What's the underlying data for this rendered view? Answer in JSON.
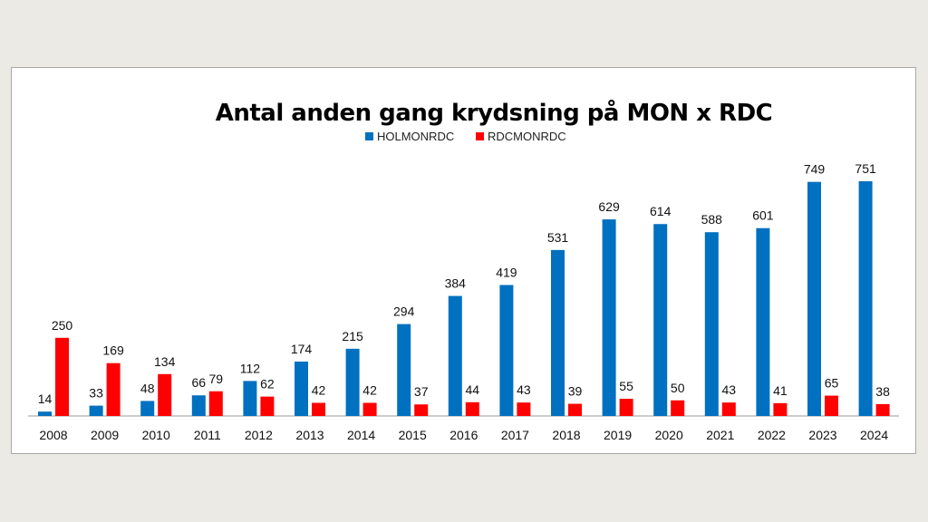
{
  "chart_data": {
    "type": "bar",
    "title": "Antal anden gang krydsning på MON x RDC",
    "xlabel": "",
    "ylabel": "",
    "categories": [
      "2008",
      "2009",
      "2010",
      "2011",
      "2012",
      "2013",
      "2014",
      "2015",
      "2016",
      "2017",
      "2018",
      "2019",
      "2020",
      "2021",
      "2022",
      "2023",
      "2024"
    ],
    "series": [
      {
        "name": "HOLMONRDC",
        "color": "#0070c0",
        "values": [
          14,
          33,
          48,
          66,
          112,
          174,
          215,
          294,
          384,
          419,
          531,
          629,
          614,
          588,
          601,
          749,
          751
        ]
      },
      {
        "name": "RDCMONRDC",
        "color": "#ff0000",
        "values": [
          250,
          169,
          134,
          79,
          62,
          42,
          42,
          37,
          44,
          43,
          39,
          55,
          50,
          43,
          41,
          65,
          38
        ]
      }
    ],
    "ylim": [
      0,
      751
    ],
    "grid": false,
    "legend_position": "top",
    "data_labels": true
  }
}
